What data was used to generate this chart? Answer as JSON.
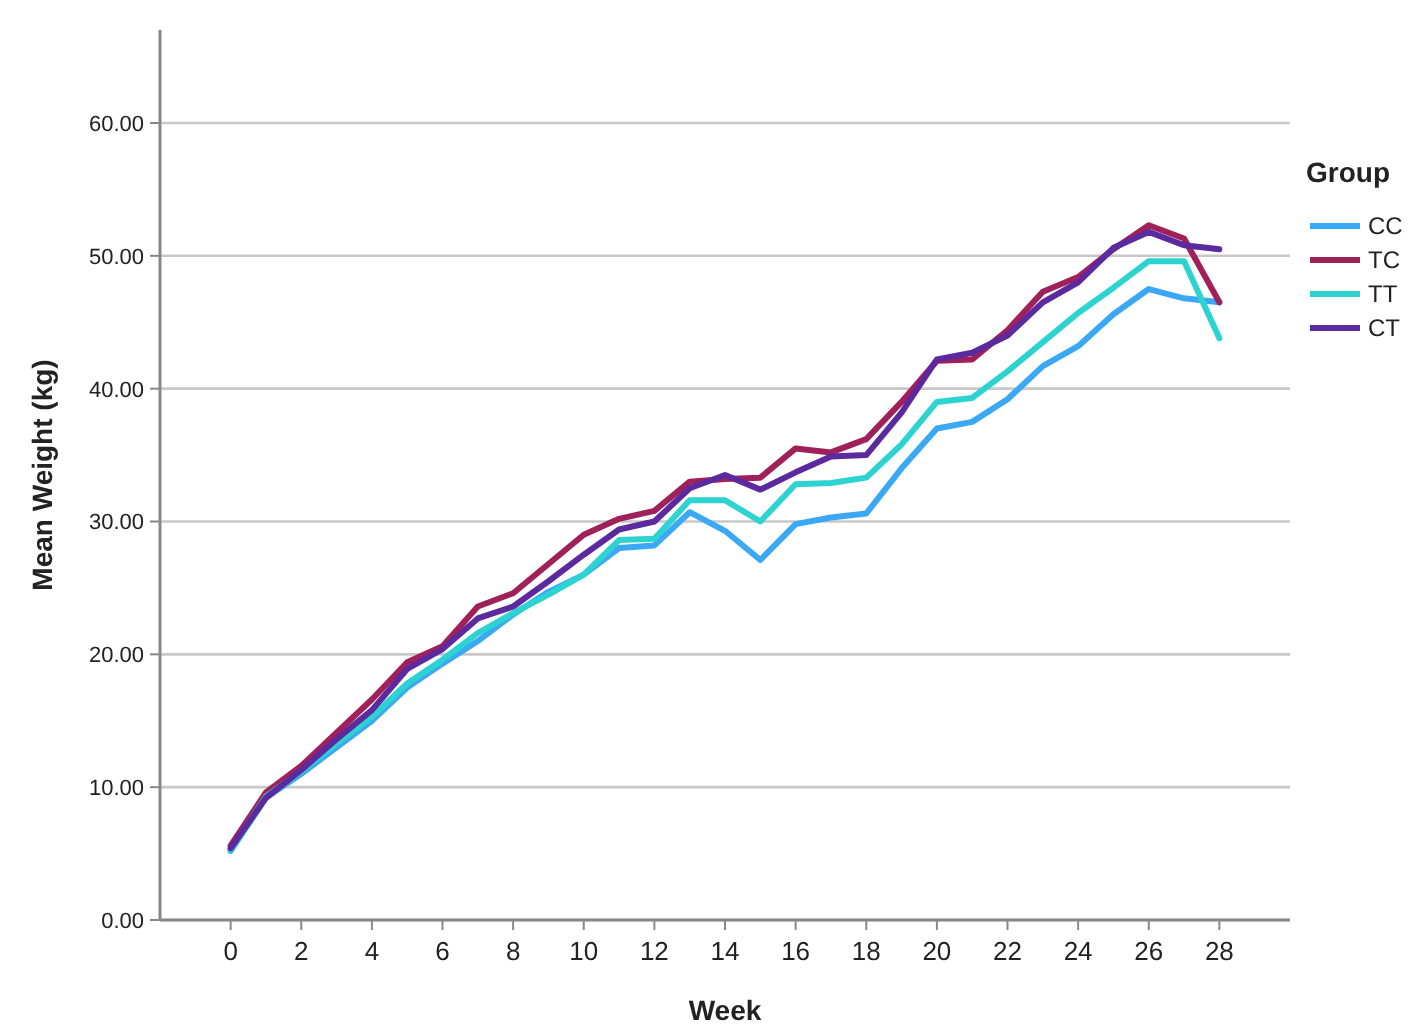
{
  "chart_data": {
    "type": "line",
    "xlabel": "Week",
    "ylabel": "Mean Weight (kg)",
    "legend_title": "Group",
    "legend": "right",
    "grid": "y",
    "line_style": "solid",
    "marker": "none",
    "x": [
      0,
      1,
      2,
      3,
      4,
      5,
      6,
      7,
      8,
      9,
      10,
      11,
      12,
      13,
      14,
      15,
      16,
      17,
      18,
      19,
      20,
      21,
      22,
      23,
      24,
      25,
      26,
      27,
      28
    ],
    "xlim": [
      -2,
      30
    ],
    "xticks": [
      0,
      2,
      4,
      6,
      8,
      10,
      12,
      14,
      16,
      18,
      20,
      22,
      24,
      26,
      28
    ],
    "ylim": [
      0,
      67
    ],
    "yticks": [
      {
        "value": 0,
        "label": "0.00"
      },
      {
        "value": 10,
        "label": "10.00"
      },
      {
        "value": 20,
        "label": "20.00"
      },
      {
        "value": 30,
        "label": "30.00"
      },
      {
        "value": 40,
        "label": "40.00"
      },
      {
        "value": 50,
        "label": "50.00"
      },
      {
        "value": 60,
        "label": "60.00"
      }
    ],
    "series": [
      {
        "name": "CC",
        "color": "#3ba8f5",
        "values": [
          5.2,
          9.2,
          11.0,
          13.0,
          15.0,
          17.5,
          19.3,
          21.0,
          23.0,
          24.7,
          26.0,
          28.0,
          28.2,
          30.7,
          29.3,
          27.1,
          29.8,
          30.3,
          30.6,
          34.0,
          37.0,
          37.5,
          39.2,
          41.7,
          43.2,
          45.6,
          47.5,
          46.8,
          46.5
        ]
      },
      {
        "name": "TC",
        "color": "#a0215a",
        "values": [
          5.6,
          9.6,
          11.6,
          14.1,
          16.6,
          19.4,
          20.6,
          23.6,
          24.6,
          26.8,
          29.0,
          30.2,
          30.8,
          33.0,
          33.2,
          33.3,
          35.5,
          35.2,
          36.2,
          39.0,
          42.1,
          42.2,
          44.4,
          47.3,
          48.4,
          50.5,
          52.3,
          51.3,
          46.5
        ]
      },
      {
        "name": "TT",
        "color": "#2dd3d0",
        "values": [
          5.3,
          9.3,
          11.2,
          13.3,
          15.3,
          17.8,
          19.6,
          21.6,
          23.1,
          24.5,
          26.0,
          28.6,
          28.7,
          31.6,
          31.6,
          30.0,
          32.8,
          32.9,
          33.3,
          35.8,
          39.0,
          39.3,
          41.3,
          43.5,
          45.7,
          47.6,
          49.6,
          49.6,
          43.8
        ]
      },
      {
        "name": "CT",
        "color": "#5b2a9e",
        "values": [
          5.4,
          9.2,
          11.3,
          13.6,
          15.8,
          18.9,
          20.4,
          22.7,
          23.6,
          25.5,
          27.5,
          29.4,
          30.0,
          32.5,
          33.5,
          32.4,
          33.7,
          34.9,
          35.0,
          38.2,
          42.2,
          42.7,
          44.0,
          46.5,
          48.0,
          50.6,
          51.8,
          50.8,
          50.5
        ]
      }
    ]
  }
}
